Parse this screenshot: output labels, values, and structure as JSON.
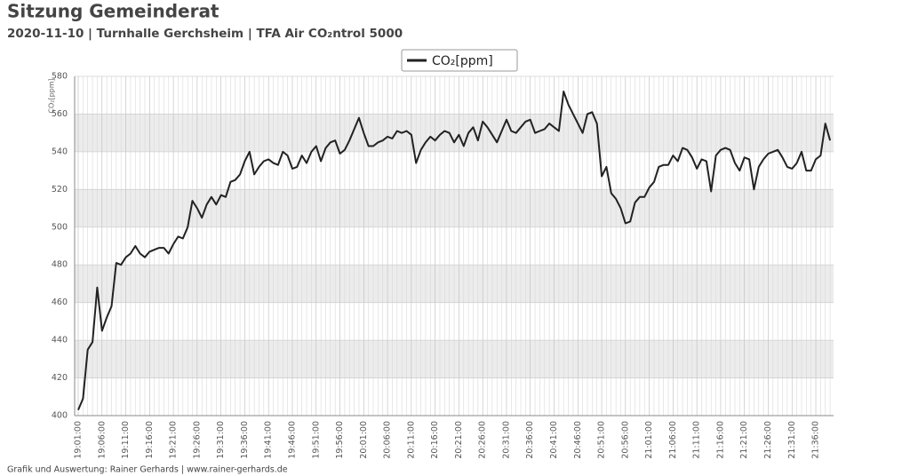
{
  "chart_data": {
    "type": "line",
    "title": "Sitzung Gemeinderat",
    "subtitle": "2020-11-10 | Turnhalle Gerchsheim | TFA Air CO₂ntrol 5000",
    "y_label": "CO₂[ppm]",
    "footer": "Grafik und Auswertung: Rainer Gerhards | www.rainer-gerhards.de",
    "categories": [
      "19:01:00",
      null,
      null,
      null,
      null,
      "19:06:00",
      null,
      null,
      null,
      null,
      "19:11:00",
      null,
      null,
      null,
      null,
      "19:16:00",
      null,
      null,
      null,
      null,
      "19:21:00",
      null,
      null,
      null,
      null,
      "19:26:00",
      null,
      null,
      null,
      null,
      "19:31:00",
      null,
      null,
      null,
      null,
      "19:36:00",
      null,
      null,
      null,
      null,
      "19:41:00",
      null,
      null,
      null,
      null,
      "19:46:00",
      null,
      null,
      null,
      null,
      "19:51:00",
      null,
      null,
      null,
      null,
      "19:56:00",
      null,
      null,
      null,
      null,
      "20:01:00",
      null,
      null,
      null,
      null,
      "20:06:00",
      null,
      null,
      null,
      null,
      "20:11:00",
      null,
      null,
      null,
      null,
      "20:16:00",
      null,
      null,
      null,
      null,
      "20:21:00",
      null,
      null,
      null,
      null,
      "20:26:00",
      null,
      null,
      null,
      null,
      "20:31:00",
      null,
      null,
      null,
      null,
      "20:36:00",
      null,
      null,
      null,
      null,
      "20:41:00",
      null,
      null,
      null,
      null,
      "20:46:00",
      null,
      null,
      null,
      null,
      "20:51:00",
      null,
      null,
      null,
      null,
      "20:56:00",
      null,
      null,
      null,
      null,
      "21:01:00",
      null,
      null,
      null,
      null,
      "21:06:00",
      null,
      null,
      null,
      null,
      "21:11:00",
      null,
      null,
      null,
      null,
      "21:16:00",
      null,
      null,
      null,
      null,
      "21:21:00",
      null,
      null,
      null,
      null,
      "21:26:00",
      null,
      null,
      null,
      null,
      "21:31:00",
      null,
      null,
      null,
      null,
      "21:36:00",
      null,
      null,
      null
    ],
    "series": [
      {
        "name": "CO₂[ppm]",
        "color": "#222222",
        "values": [
          403,
          409,
          435,
          439,
          468,
          445,
          452,
          458,
          481,
          480,
          484,
          486,
          490,
          486,
          484,
          487,
          488,
          489,
          489,
          486,
          491,
          495,
          494,
          500,
          514,
          510,
          505,
          512,
          516,
          512,
          517,
          516,
          524,
          525,
          528,
          535,
          540,
          528,
          532,
          535,
          536,
          534,
          533,
          540,
          538,
          531,
          532,
          538,
          534,
          540,
          543,
          535,
          542,
          545,
          546,
          539,
          541,
          546,
          552,
          558,
          550,
          543,
          543,
          545,
          546,
          548,
          547,
          551,
          550,
          551,
          549,
          534,
          541,
          545,
          548,
          546,
          549,
          551,
          550,
          545,
          549,
          543,
          550,
          553,
          546,
          556,
          553,
          549,
          545,
          551,
          557,
          551,
          550,
          553,
          556,
          557,
          550,
          551,
          552,
          555,
          553,
          551,
          572,
          565,
          560,
          555,
          550,
          560,
          561,
          555,
          527,
          532,
          518,
          515,
          510,
          502,
          503,
          513,
          516,
          516,
          521,
          524,
          532,
          533,
          533,
          538,
          535,
          542,
          541,
          537,
          531,
          536,
          535,
          519,
          538,
          541,
          542,
          541,
          534,
          530,
          537,
          536,
          520,
          532,
          536,
          539,
          540,
          541,
          537,
          532,
          531,
          534,
          540,
          530,
          530,
          536,
          538,
          555,
          546
        ]
      }
    ],
    "ylim": [
      400,
      580
    ],
    "yticks": [
      400,
      420,
      440,
      460,
      480,
      500,
      520,
      540,
      560,
      580
    ],
    "grid": true,
    "legend": "top"
  }
}
